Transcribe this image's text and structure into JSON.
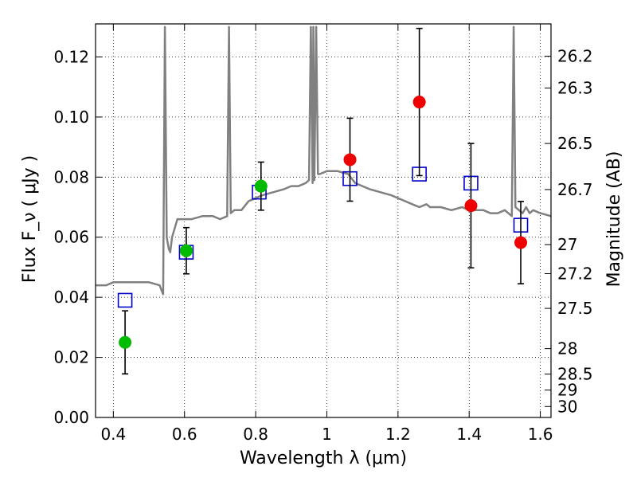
{
  "chart_data": {
    "type": "scatter",
    "xlabel": "Wavelength  λ (μm)",
    "ylabel": "Flux  F_ν  ( μJy )",
    "y2label": "Magnitude (AB)",
    "xlim": [
      0.35,
      1.63
    ],
    "ylim": [
      0.0,
      0.131
    ],
    "x_ticks": [
      0.4,
      0.6,
      0.8,
      1.0,
      1.2,
      1.4,
      1.6
    ],
    "x_tick_labels": [
      "0.4",
      "0.6",
      "0.8",
      "1",
      "1.2",
      "1.4",
      "1.6"
    ],
    "y_ticks": [
      0.0,
      0.02,
      0.04,
      0.06,
      0.08,
      0.1,
      0.12
    ],
    "y_tick_labels": [
      "0.00",
      "0.02",
      "0.04",
      "0.06",
      "0.08",
      "0.10",
      "0.12"
    ],
    "y2_ticks": [
      26.2,
      26.3,
      26.5,
      26.7,
      27,
      27.2,
      27.5,
      28,
      28.5,
      29,
      30
    ],
    "y2_tick_labels": [
      "26.2",
      "26.3",
      "26.5",
      "26.7",
      "27",
      "27.2",
      "27.5",
      "28",
      "28.5",
      "29",
      "30"
    ],
    "grid": true,
    "colors": {
      "template": "#808080",
      "model": "#0000cc",
      "optical": "#00bb00",
      "nir": "#ee0000",
      "errorbar": "#000000"
    },
    "series": [
      {
        "marker": "line",
        "color": "#808080",
        "x": [
          0.35,
          0.38,
          0.4,
          0.42,
          0.44,
          0.46,
          0.5,
          0.53,
          0.54,
          0.545,
          0.55,
          0.553,
          0.556,
          0.56,
          0.565,
          0.58,
          0.6,
          0.62,
          0.65,
          0.68,
          0.7,
          0.72,
          0.725,
          0.73,
          0.74,
          0.76,
          0.78,
          0.8,
          0.82,
          0.85,
          0.88,
          0.9,
          0.92,
          0.94,
          0.95,
          0.955,
          0.96,
          0.962,
          0.965,
          0.97,
          0.975,
          0.98,
          1.0,
          1.03,
          1.06,
          1.08,
          1.1,
          1.12,
          1.15,
          1.18,
          1.2,
          1.22,
          1.24,
          1.26,
          1.28,
          1.29,
          1.3,
          1.32,
          1.35,
          1.38,
          1.4,
          1.42,
          1.44,
          1.46,
          1.48,
          1.5,
          1.51,
          1.52,
          1.525,
          1.53,
          1.54,
          1.55,
          1.56,
          1.57,
          1.58,
          1.6,
          1.63
        ],
        "y": [
          0.044,
          0.044,
          0.045,
          0.045,
          0.045,
          0.045,
          0.045,
          0.044,
          0.041,
          0.13,
          0.06,
          0.058,
          0.056,
          0.055,
          0.06,
          0.066,
          0.066,
          0.066,
          0.067,
          0.067,
          0.066,
          0.067,
          0.13,
          0.068,
          0.069,
          0.069,
          0.072,
          0.073,
          0.074,
          0.075,
          0.076,
          0.077,
          0.077,
          0.078,
          0.079,
          0.13,
          0.078,
          0.13,
          0.079,
          0.13,
          0.081,
          0.081,
          0.082,
          0.082,
          0.081,
          0.078,
          0.077,
          0.076,
          0.075,
          0.074,
          0.073,
          0.072,
          0.071,
          0.07,
          0.071,
          0.07,
          0.07,
          0.07,
          0.069,
          0.07,
          0.069,
          0.069,
          0.069,
          0.068,
          0.068,
          0.069,
          0.068,
          0.067,
          0.13,
          0.07,
          0.069,
          0.068,
          0.07,
          0.068,
          0.069,
          0.068,
          0.067
        ]
      },
      {
        "marker": "open-square",
        "color": "#0000cc",
        "x": [
          0.433,
          0.605,
          0.81,
          1.065,
          1.26,
          1.405,
          1.545
        ],
        "y": [
          0.039,
          0.055,
          0.075,
          0.0795,
          0.081,
          0.078,
          0.064
        ]
      },
      {
        "marker": "filled-circle",
        "color": "#00bb00",
        "x": [
          0.433,
          0.605,
          0.815
        ],
        "y": [
          0.025,
          0.0555,
          0.077
        ],
        "yerr": [
          0.0105,
          0.0077,
          0.008
        ]
      },
      {
        "marker": "filled-circle",
        "color": "#ee0000",
        "x": [
          1.065,
          1.26,
          1.405,
          1.545
        ],
        "y": [
          0.0858,
          0.105,
          0.0705,
          0.0582
        ],
        "yerr": [
          0.0138,
          0.0245,
          0.0207,
          0.0137
        ]
      }
    ]
  }
}
